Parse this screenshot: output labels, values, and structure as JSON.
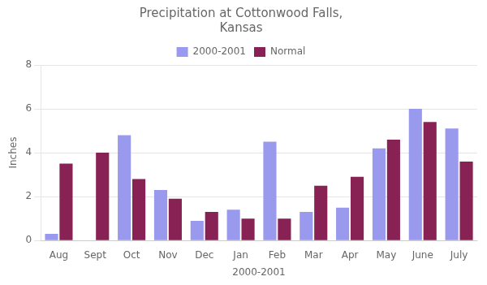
{
  "chart_data": {
    "type": "bar",
    "title": [
      "Precipitation at Cottonwood Falls,",
      "Kansas"
    ],
    "xlabel": "2000-2001",
    "ylabel": "Inches",
    "categories": [
      "Aug",
      "Sept",
      "Oct",
      "Nov",
      "Dec",
      "Jan",
      "Feb",
      "Mar",
      "Apr",
      "May",
      "June",
      "July"
    ],
    "series": [
      {
        "name": "2000-2001",
        "color": "#9999EE",
        "values": [
          0.3,
          0.0,
          4.8,
          2.3,
          0.9,
          1.4,
          4.5,
          1.3,
          1.5,
          4.2,
          6.0,
          5.1
        ]
      },
      {
        "name": "Normal",
        "color": "#882255",
        "values": [
          3.5,
          4.0,
          2.8,
          1.9,
          1.3,
          1.0,
          1.0,
          2.5,
          2.9,
          4.6,
          5.4,
          3.6
        ]
      }
    ],
    "ylim": [
      0,
      8
    ],
    "yticks": [
      0,
      2,
      4,
      6,
      8
    ],
    "grid": true,
    "legend": "top"
  }
}
